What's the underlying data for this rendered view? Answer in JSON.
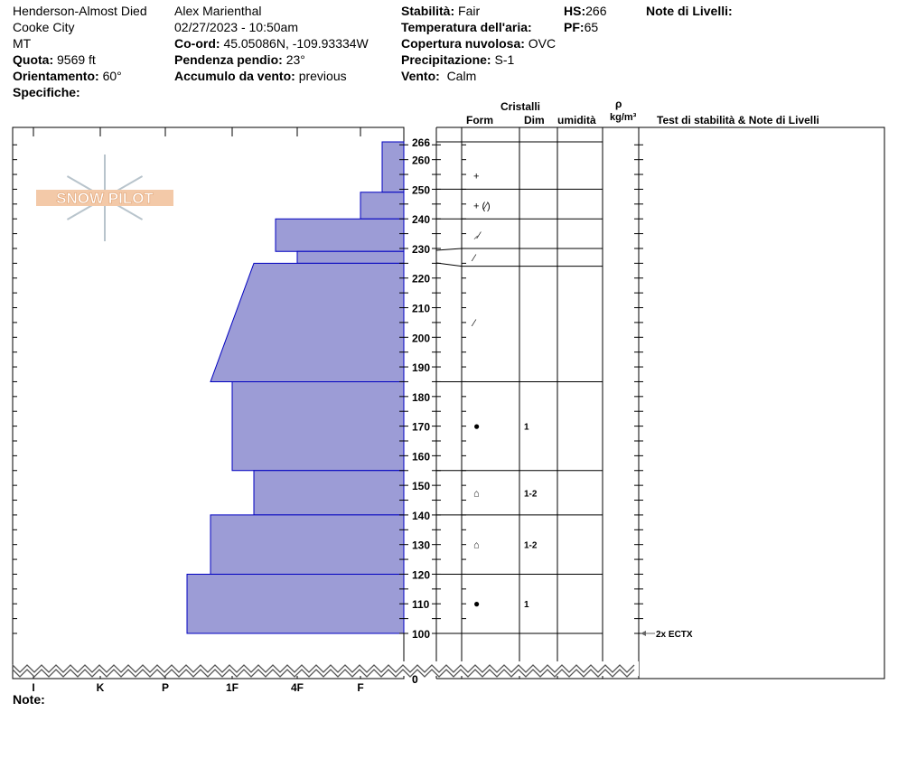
{
  "header": {
    "col1": {
      "location": "Henderson-Almost Died",
      "area": "Cooke City",
      "state": "MT",
      "elevation_label": "Quota:",
      "elevation": "9569 ft",
      "aspect_label": "Orientamento:",
      "aspect": "60°",
      "specifics_label": "Specifiche:"
    },
    "col2": {
      "observer": "Alex Marienthal",
      "datetime": "02/27/2023 - 10:50am",
      "coord_label": "Co-ord:",
      "coord": "45.05086N, -109.93334W",
      "slope_label": "Pendenza pendio:",
      "slope": "23°",
      "wind_load_label": "Accumulo da vento:",
      "wind_load": "previous"
    },
    "col3": {
      "stability_label": "Stabilità:",
      "stability": "Fair",
      "air_temp_label": "Temperatura dell'aria:",
      "cloud_label": "Copertura nuvolosa:",
      "cloud": "OVC",
      "precip_label": "Precipitazione:",
      "precip": "S-1",
      "wind_label": "Vento:",
      "wind": "Calm"
    },
    "col4": {
      "hs_label": "HS:",
      "hs": "266",
      "pf_label": "PF:",
      "pf": "65"
    },
    "col5": {
      "layer_notes_label": "Note di Livelli:"
    }
  },
  "logo": {
    "text": "SNOW PILOT"
  },
  "table_headers": {
    "crystals": "Cristalli",
    "form": "Form",
    "size": "Dim",
    "moisture": "umidità",
    "density_symbol": "ρ",
    "density_unit": "kg/m³",
    "tests": "Test di stabilità & Note di Livelli"
  },
  "footer": {
    "note_label": "Note:"
  },
  "chart_data": {
    "type": "snow-profile",
    "y_ticks": [
      0,
      100,
      110,
      120,
      130,
      140,
      150,
      160,
      170,
      180,
      190,
      200,
      210,
      220,
      230,
      240,
      250,
      260,
      266
    ],
    "hardness_ticks": [
      "I",
      "K",
      "P",
      "1F",
      "4F",
      "F"
    ],
    "fill_color": "#9c9cd6",
    "edge_color": "#0000c0",
    "layers": [
      {
        "top": 266,
        "bottom": 249,
        "hardness_top": "F+",
        "hardness_bottom": "F+",
        "form": "+",
        "size": ""
      },
      {
        "top": 249,
        "bottom": 240,
        "hardness_top": "F",
        "hardness_bottom": "F",
        "form": "+ (⁄)",
        "size": ""
      },
      {
        "top": 240,
        "bottom": 229,
        "hardness_top": "4F-",
        "hardness_bottom": "4F-",
        "form": "⸝⁄",
        "size": ""
      },
      {
        "top": 229,
        "bottom": 225,
        "hardness_top": "4F",
        "hardness_bottom": "4F",
        "form": "⁄",
        "size": ""
      },
      {
        "top": 225,
        "bottom": 185,
        "hardness_top": "1F+",
        "hardness_bottom": "1F-",
        "form": "⁄",
        "size": ""
      },
      {
        "top": 185,
        "bottom": 155,
        "hardness_top": "1F",
        "hardness_bottom": "1F",
        "form": "●",
        "size": "1"
      },
      {
        "top": 155,
        "bottom": 140,
        "hardness_top": "1F+",
        "hardness_bottom": "1F+",
        "form": "⌂",
        "size": "1-2"
      },
      {
        "top": 140,
        "bottom": 120,
        "hardness_top": "1F-",
        "hardness_bottom": "1F-",
        "form": "⌂",
        "size": "1-2"
      },
      {
        "top": 120,
        "bottom": 100,
        "hardness_top": "P+",
        "hardness_bottom": "P+",
        "form": "●",
        "size": "1"
      }
    ],
    "table_boundaries": [
      266,
      250,
      240,
      230,
      224,
      185,
      155,
      140,
      120,
      100
    ],
    "tests": [
      {
        "height": 100,
        "label": "2x ECTX"
      }
    ]
  }
}
